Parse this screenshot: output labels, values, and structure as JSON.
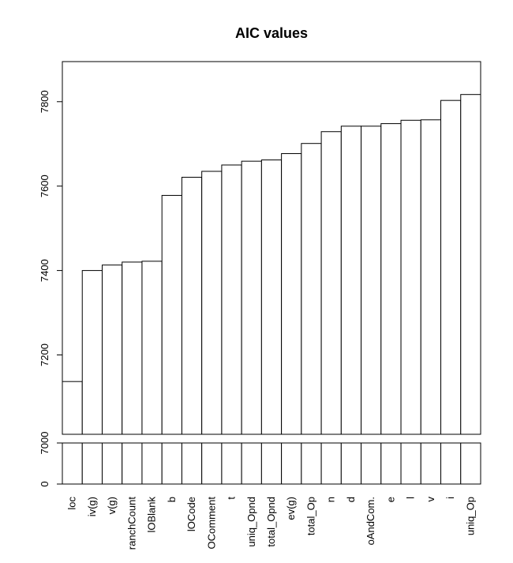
{
  "chart_data": {
    "type": "bar",
    "title": "AIC values",
    "xlabel": "",
    "ylabel": "",
    "categories": [
      "loc",
      "iv(g)",
      "v(g)",
      "ranchCount",
      "lOBlank",
      "b",
      "lOCode",
      "OComment",
      "t",
      "uniq_Opnd",
      "total_Opnd",
      "ev(g)",
      "total_Op",
      "n",
      "d",
      "oAndCom.",
      "e",
      "l",
      "v",
      "i",
      "uniq_Op"
    ],
    "values": [
      7137,
      7400,
      7413,
      7420,
      7422,
      7578,
      7621,
      7635,
      7650,
      7659,
      7662,
      7677,
      7701,
      7729,
      7742,
      7742,
      7748,
      7756,
      7757,
      7803,
      7817
    ],
    "y_axis_break": true,
    "upper_ylim": [
      7012,
      7895
    ],
    "upper_yticks": [
      7200,
      7400,
      7600,
      7800
    ],
    "lower_ylim": [
      0,
      7000
    ],
    "lower_yticks": [
      0,
      7000
    ],
    "grid": false,
    "legend": "none",
    "bar_fill": "#ffffff",
    "bar_stroke": "#000000"
  }
}
